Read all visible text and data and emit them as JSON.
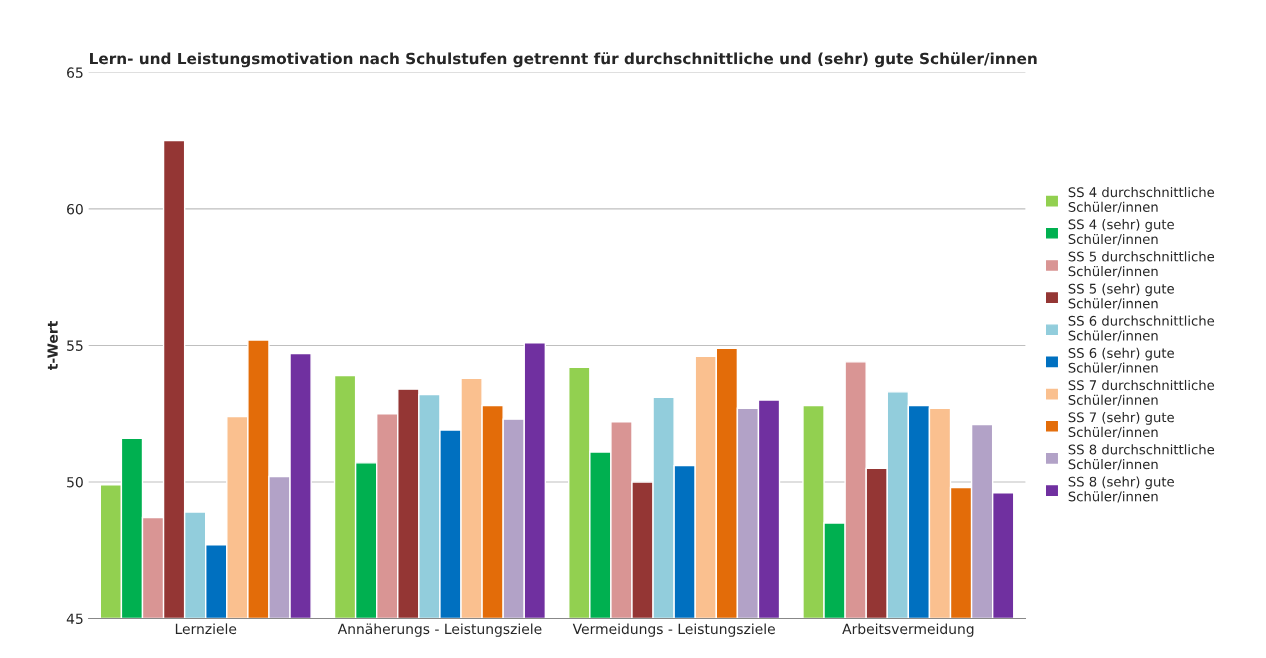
{
  "chart_data": {
    "type": "bar",
    "title": "Lern- und Leistungsmotivation nach Schulstufen getrennt für durchschnittliche und (sehr) gute Schüler/innen",
    "ylabel": "t-Wert",
    "categories": [
      "Lernziele",
      "Annäherungs - Leistungsziele",
      "Vermeidungs - Leistungsziele",
      "Arbeitsvermeidung"
    ],
    "ylim": [
      45,
      65
    ],
    "yticks": [
      45,
      50,
      55,
      60,
      65
    ],
    "grid": "y",
    "legend": "right",
    "series": [
      {
        "name": "SS 4 durchschnittliche Schüler/innen",
        "color": "#92d050",
        "values": [
          49.9,
          53.9,
          54.2,
          52.8
        ]
      },
      {
        "name": "SS 4 (sehr) gute Schüler/innen",
        "color": "#00b050",
        "values": [
          51.6,
          50.7,
          51.1,
          48.5
        ]
      },
      {
        "name": "SS 5 durchschnittliche Schüler/innen",
        "color": "#d99594",
        "values": [
          48.7,
          52.5,
          52.2,
          54.4
        ]
      },
      {
        "name": "SS 5 (sehr) gute Schüler/innen",
        "color": "#943634",
        "values": [
          62.5,
          53.4,
          50.0,
          50.5
        ]
      },
      {
        "name": "SS 6 durchschnittliche Schüler/innen",
        "color": "#92cddc",
        "values": [
          48.9,
          53.2,
          53.1,
          53.3
        ]
      },
      {
        "name": "SS 6 (sehr) gute Schüler/innen",
        "color": "#0070c0",
        "values": [
          47.7,
          51.9,
          50.6,
          52.8
        ]
      },
      {
        "name": "SS 7 durchschnittliche Schüler/innen",
        "color": "#fac08f",
        "values": [
          52.4,
          53.8,
          54.6,
          52.7
        ]
      },
      {
        "name": "SS 7 (sehr) gute Schüler/innen",
        "color": "#e36c09",
        "values": [
          55.2,
          52.8,
          54.9,
          49.8
        ]
      },
      {
        "name": "SS 8 durchschnittliche Schüler/innen",
        "color": "#b2a2c7",
        "values": [
          50.2,
          52.3,
          52.7,
          52.1
        ]
      },
      {
        "name": "SS 8 (sehr) gute Schüler/innen",
        "color": "#7030a0",
        "values": [
          54.7,
          55.1,
          53.0,
          49.6
        ]
      }
    ]
  }
}
